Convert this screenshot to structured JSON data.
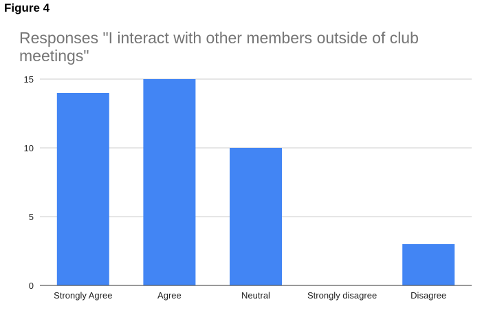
{
  "figure_label": "Figure 4",
  "chart_data": {
    "type": "bar",
    "title": "Responses \"I interact with other members outside of club meetings\"",
    "xlabel": "",
    "ylabel": "",
    "categories": [
      "Strongly Agree",
      "Agree",
      "Neutral",
      "Strongly disagree",
      "Disagree"
    ],
    "values": [
      14,
      15,
      10,
      0,
      3
    ],
    "ylim": [
      0,
      15
    ],
    "yticks": [
      "0",
      "5",
      "10",
      "15"
    ],
    "grid": true,
    "bar_color": "#4285f4"
  }
}
